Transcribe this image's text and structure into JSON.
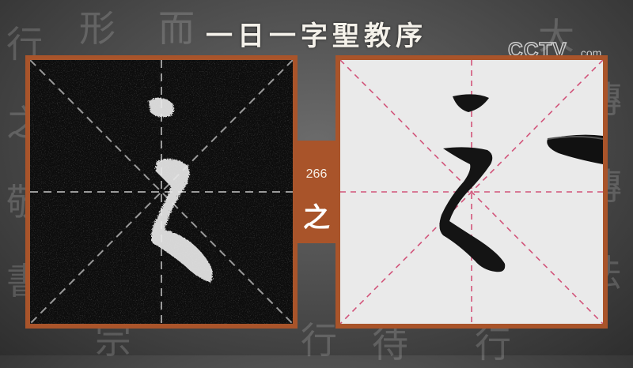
{
  "title": "一日一字聖教序",
  "logo": {
    "text": "CCTV.com"
  },
  "char_index": "266",
  "char": "之",
  "colors": {
    "frame": "#a9542a",
    "guide_left": "#9a9a9a",
    "guide_right": "#d2547a",
    "rubbing_bg": "#0d0d0d",
    "paper_bg": "#eaeaea"
  }
}
